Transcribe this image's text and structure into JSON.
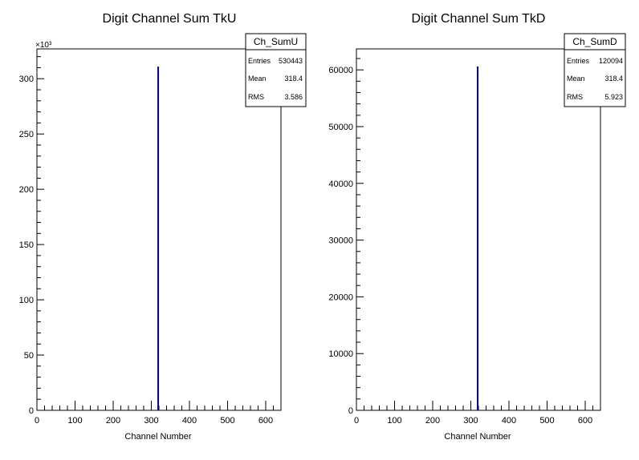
{
  "colors": {
    "histogram_line": "#000080",
    "frame": "#000000",
    "background": "#ffffff"
  },
  "chart_data": [
    {
      "type": "bar",
      "title": "Digit Channel Sum TkU",
      "xlabel": "Channel Number",
      "ylabel": "",
      "xlim": [
        0,
        640
      ],
      "ylim": [
        0,
        327
      ],
      "y_multiplier_label": "×10³",
      "x_ticks": [
        0,
        100,
        200,
        300,
        400,
        500,
        600
      ],
      "y_ticks": [
        0,
        50,
        100,
        150,
        200,
        250,
        300
      ],
      "y_tick_labels": [
        "0",
        "50",
        "100",
        "150",
        "200",
        "250",
        "300"
      ],
      "bins": [
        {
          "x": 318,
          "value": 311
        }
      ],
      "stats": {
        "name": "Ch_SumU",
        "entries_label": "Entries",
        "entries": "530443",
        "mean_label": "Mean",
        "mean": "318.4",
        "rms_label": "RMS",
        "rms": "3.586"
      }
    },
    {
      "type": "bar",
      "title": "Digit Channel Sum TkD",
      "xlabel": "Channel Number",
      "ylabel": "",
      "xlim": [
        0,
        640
      ],
      "ylim": [
        0,
        63700
      ],
      "y_multiplier_label": "",
      "x_ticks": [
        0,
        100,
        200,
        300,
        400,
        500,
        600
      ],
      "y_ticks": [
        0,
        10000,
        20000,
        30000,
        40000,
        50000,
        60000
      ],
      "y_tick_labels": [
        "0",
        "10000",
        "20000",
        "30000",
        "40000",
        "50000",
        "60000"
      ],
      "bins": [
        {
          "x": 318,
          "value": 60600
        }
      ],
      "stats": {
        "name": "Ch_SumD",
        "entries_label": "Entries",
        "entries": "120094",
        "mean_label": "Mean",
        "mean": "318.4",
        "rms_label": "RMS",
        "rms": "5.923"
      }
    }
  ]
}
